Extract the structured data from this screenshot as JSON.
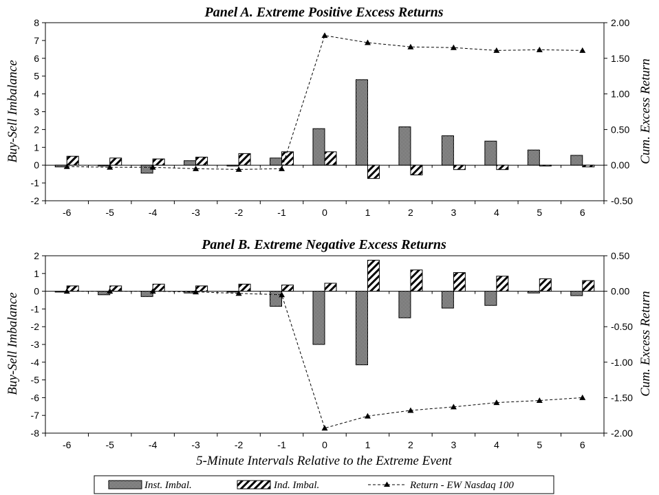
{
  "chart_data": [
    {
      "type": "bar",
      "title": "Panel A. Extreme Positive Excess Returns",
      "ylabel": "Buy-Sell Imbalance",
      "y2label": "Cum. Excess Return",
      "categories": [
        "-6",
        "-5",
        "-4",
        "-3",
        "-2",
        "-1",
        "0",
        "1",
        "2",
        "3",
        "4",
        "5",
        "6"
      ],
      "ylim": [
        -2,
        8
      ],
      "yticks": [
        "-2",
        "-1",
        "0",
        "1",
        "2",
        "3",
        "4",
        "5",
        "6",
        "7",
        "8"
      ],
      "y2lim": [
        -0.5,
        2.0
      ],
      "y2ticks": [
        "-0.50",
        "0.00",
        "0.50",
        "1.00",
        "1.50",
        "2.00"
      ],
      "series": [
        {
          "name": "Inst. Imbal.",
          "kind": "bar",
          "values": [
            -0.1,
            -0.05,
            -0.45,
            0.25,
            -0.05,
            0.4,
            2.05,
            4.8,
            2.15,
            1.65,
            1.35,
            0.85,
            0.55
          ]
        },
        {
          "name": "Ind. Imbal.",
          "kind": "bar",
          "values": [
            0.5,
            0.4,
            0.35,
            0.45,
            0.65,
            0.75,
            0.75,
            -0.75,
            -0.55,
            -0.25,
            -0.25,
            -0.05,
            -0.1
          ]
        },
        {
          "name": "Return - EW Nasdaq 100",
          "kind": "line",
          "axis": "right",
          "values": [
            -0.02,
            -0.03,
            -0.03,
            -0.05,
            -0.06,
            -0.05,
            1.82,
            1.72,
            1.66,
            1.65,
            1.61,
            1.62,
            1.61
          ]
        }
      ]
    },
    {
      "type": "bar",
      "title": "Panel B. Extreme Negative Excess Returns",
      "xlabel": "5-Minute Intervals Relative to the Extreme Event",
      "ylabel": "Buy-Sell Imbalance",
      "y2label": "Cum. Excess Return",
      "categories": [
        "-6",
        "-5",
        "-4",
        "-3",
        "-2",
        "-1",
        "0",
        "1",
        "2",
        "3",
        "4",
        "5",
        "6"
      ],
      "ylim": [
        -8,
        2
      ],
      "yticks": [
        "-8",
        "-7",
        "-6",
        "-5",
        "-4",
        "-3",
        "-2",
        "-1",
        "0",
        "1",
        "2"
      ],
      "y2lim": [
        -2.0,
        0.5
      ],
      "y2ticks": [
        "-2.00",
        "-1.50",
        "-1.00",
        "-0.50",
        "0.00",
        "0.50"
      ],
      "series": [
        {
          "name": "Inst. Imbal.",
          "kind": "bar",
          "values": [
            -0.05,
            -0.2,
            -0.3,
            -0.1,
            -0.05,
            -0.85,
            -3.0,
            -4.15,
            -1.5,
            -0.95,
            -0.8,
            -0.1,
            -0.25
          ]
        },
        {
          "name": "Ind. Imbal.",
          "kind": "bar",
          "values": [
            0.3,
            0.3,
            0.4,
            0.3,
            0.4,
            0.35,
            0.45,
            1.75,
            1.2,
            1.05,
            0.85,
            0.7,
            0.6
          ]
        },
        {
          "name": "Return - EW Nasdaq 100",
          "kind": "line",
          "axis": "right",
          "values": [
            0.0,
            0.0,
            0.0,
            -0.01,
            -0.03,
            -0.05,
            -1.93,
            -1.76,
            -1.68,
            -1.63,
            -1.57,
            -1.54,
            -1.5
          ]
        }
      ]
    }
  ],
  "legend": {
    "items": [
      {
        "label": "Inst. Imbal."
      },
      {
        "label": "Ind. Imbal."
      },
      {
        "label": "Return - EW Nasdaq 100"
      }
    ]
  }
}
